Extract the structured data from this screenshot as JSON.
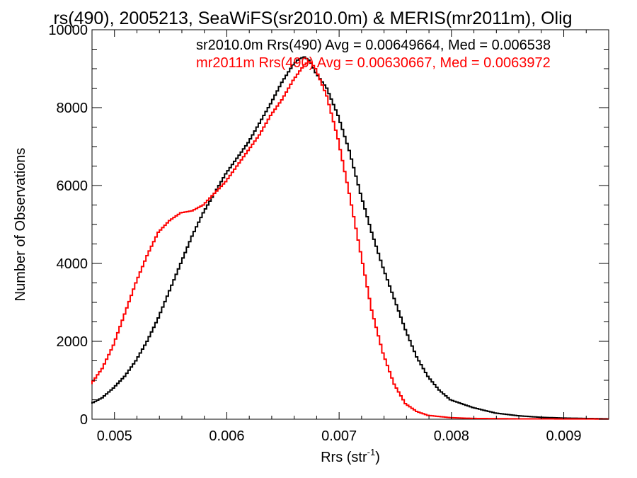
{
  "chart_data": {
    "type": "line",
    "step": true,
    "title": "rs(490), 2005213, SeaWiFS(sr2010.0m) & MERIS(mr2011m), Olig",
    "xlabel_main": "Rrs (str",
    "xlabel_sup": "-1",
    "xlabel_tail": ")",
    "ylabel": "Number of Observations",
    "xlim": [
      0.0048,
      0.0094
    ],
    "ylim": [
      0,
      10000
    ],
    "xticks": [
      0.005,
      0.006,
      0.007,
      0.008,
      0.009
    ],
    "xtick_labels": [
      "0.005",
      "0.006",
      "0.007",
      "0.008",
      "0.009"
    ],
    "xminor": [
      0.0052,
      0.0054,
      0.0056,
      0.0058,
      0.0062,
      0.0064,
      0.0066,
      0.0068,
      0.0072,
      0.0074,
      0.0076,
      0.0078,
      0.0082,
      0.0084,
      0.0086,
      0.0088,
      0.0092
    ],
    "yticks": [
      0,
      2000,
      4000,
      6000,
      8000,
      10000
    ],
    "ytick_labels": [
      "0",
      "2000",
      "4000",
      "6000",
      "8000",
      "10000"
    ],
    "yminor": [
      500,
      1000,
      1500,
      2500,
      3000,
      3500,
      4500,
      5000,
      5500,
      6500,
      7000,
      7500,
      8500,
      9000,
      9500
    ],
    "grid": false,
    "legend_position": "top-right",
    "series": [
      {
        "name": "sr2010.0m",
        "legend": "sr2010.0m Rrs(490) Avg = 0.00649664, Med = 0.006538",
        "color": "#000000",
        "points": [
          [
            0.0048,
            400
          ],
          [
            0.0049,
            550
          ],
          [
            0.005,
            800
          ],
          [
            0.0051,
            1100
          ],
          [
            0.0052,
            1500
          ],
          [
            0.0053,
            2000
          ],
          [
            0.0054,
            2600
          ],
          [
            0.0055,
            3300
          ],
          [
            0.0056,
            4000
          ],
          [
            0.0057,
            4700
          ],
          [
            0.0058,
            5300
          ],
          [
            0.0059,
            5800
          ],
          [
            0.006,
            6300
          ],
          [
            0.0061,
            6700
          ],
          [
            0.0062,
            7100
          ],
          [
            0.0063,
            7600
          ],
          [
            0.0064,
            8100
          ],
          [
            0.0065,
            8650
          ],
          [
            0.0066,
            9100
          ],
          [
            0.00665,
            9250
          ],
          [
            0.0067,
            9300
          ],
          [
            0.00675,
            9200
          ],
          [
            0.0068,
            8900
          ],
          [
            0.0069,
            8500
          ],
          [
            0.007,
            7800
          ],
          [
            0.0071,
            6900
          ],
          [
            0.0072,
            5800
          ],
          [
            0.0073,
            4800
          ],
          [
            0.0074,
            3900
          ],
          [
            0.0075,
            3100
          ],
          [
            0.0076,
            2300
          ],
          [
            0.0077,
            1600
          ],
          [
            0.0078,
            1100
          ],
          [
            0.0079,
            750
          ],
          [
            0.008,
            500
          ],
          [
            0.0082,
            300
          ],
          [
            0.0084,
            160
          ],
          [
            0.0086,
            90
          ],
          [
            0.0088,
            50
          ],
          [
            0.009,
            30
          ],
          [
            0.0092,
            20
          ],
          [
            0.0094,
            10
          ]
        ]
      },
      {
        "name": "mr2011m",
        "legend": "mr2011m Rrs(490) Avg = 0.00630667, Med = 0.0063972",
        "color": "#ff0000",
        "points": [
          [
            0.0048,
            900
          ],
          [
            0.0049,
            1300
          ],
          [
            0.005,
            1900
          ],
          [
            0.0051,
            2700
          ],
          [
            0.0052,
            3500
          ],
          [
            0.0053,
            4200
          ],
          [
            0.0054,
            4800
          ],
          [
            0.0055,
            5100
          ],
          [
            0.0056,
            5300
          ],
          [
            0.0057,
            5350
          ],
          [
            0.0058,
            5500
          ],
          [
            0.0059,
            5800
          ],
          [
            0.006,
            6100
          ],
          [
            0.0061,
            6500
          ],
          [
            0.0062,
            6900
          ],
          [
            0.0063,
            7300
          ],
          [
            0.0064,
            7800
          ],
          [
            0.0065,
            8200
          ],
          [
            0.0066,
            8700
          ],
          [
            0.0067,
            9100
          ],
          [
            0.00675,
            9200
          ],
          [
            0.0068,
            9000
          ],
          [
            0.0069,
            8300
          ],
          [
            0.007,
            7200
          ],
          [
            0.0071,
            5800
          ],
          [
            0.0072,
            4300
          ],
          [
            0.0073,
            2800
          ],
          [
            0.0074,
            1700
          ],
          [
            0.0075,
            900
          ],
          [
            0.0076,
            400
          ],
          [
            0.0077,
            200
          ],
          [
            0.0078,
            100
          ],
          [
            0.008,
            40
          ],
          [
            0.0082,
            20
          ],
          [
            0.0086,
            10
          ],
          [
            0.0094,
            5
          ]
        ]
      }
    ]
  }
}
